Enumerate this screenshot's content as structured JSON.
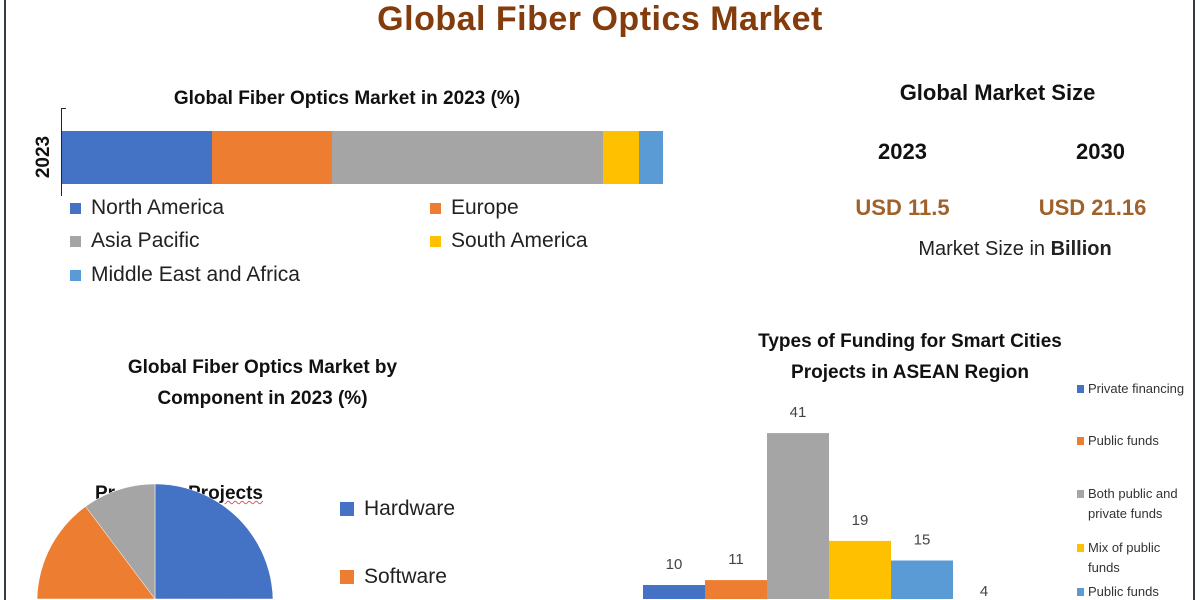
{
  "title": "Global Fiber Optics Market",
  "market_size": {
    "heading": "Global Market Size",
    "years": [
      "2023",
      "2030"
    ],
    "values": [
      "USD 11.5",
      "USD 21.16"
    ],
    "note_prefix": "Market Size in ",
    "note_bold": "Billion"
  },
  "chart_data": [
    {
      "type": "bar",
      "orientation": "horizontal-stacked",
      "title": "Global Fiber Optics Market in 2023 (%)",
      "categories": [
        "2023"
      ],
      "series": [
        {
          "name": "North America",
          "values": [
            25
          ],
          "color": "#4472c4"
        },
        {
          "name": "Europe",
          "values": [
            20
          ],
          "color": "#ed7d31"
        },
        {
          "name": "Asia Pacific",
          "values": [
            45
          ],
          "color": "#a5a5a5"
        },
        {
          "name": "South America",
          "values": [
            6
          ],
          "color": "#ffc000"
        },
        {
          "name": "Middle East and Africa",
          "values": [
            4
          ],
          "color": "#5b9bd5"
        }
      ],
      "legend": "bottom"
    },
    {
      "type": "pie",
      "title": "Global Fiber Optics Market by Component in 2023 (%)",
      "overlapping_text": [
        "Pr",
        "Projects"
      ],
      "slices": [
        {
          "name": "Hardware",
          "value": 60,
          "color": "#4472c4"
        },
        {
          "name": "",
          "value": 14,
          "color": "#5a6f8f"
        },
        {
          "name": "Software",
          "value": 16,
          "color": "#ed7d31"
        },
        {
          "name": "",
          "value": 10,
          "color": "#a5a5a5"
        }
      ],
      "legend_entries": [
        "Hardware",
        "Software"
      ],
      "legend": "right"
    },
    {
      "type": "bar",
      "title": "Types of Funding for Smart Cities Projects in ASEAN Region",
      "series": [
        {
          "name": "Private financing",
          "value": 10,
          "color": "#4472c4"
        },
        {
          "name": "Public funds",
          "value": 11,
          "color": "#ed7d31"
        },
        {
          "name": "Both public and private funds",
          "value": 41,
          "color": "#a5a5a5"
        },
        {
          "name": "Mix of public funds",
          "value": 19,
          "color": "#ffc000"
        },
        {
          "name": "",
          "value": 15,
          "color": "#5b9bd5"
        },
        {
          "name": "Public funds",
          "value": 4,
          "color": "#5b9bd5"
        }
      ],
      "data_labels": [
        "10",
        "11",
        "41",
        "19",
        "15",
        "4"
      ],
      "legend": "right"
    }
  ]
}
